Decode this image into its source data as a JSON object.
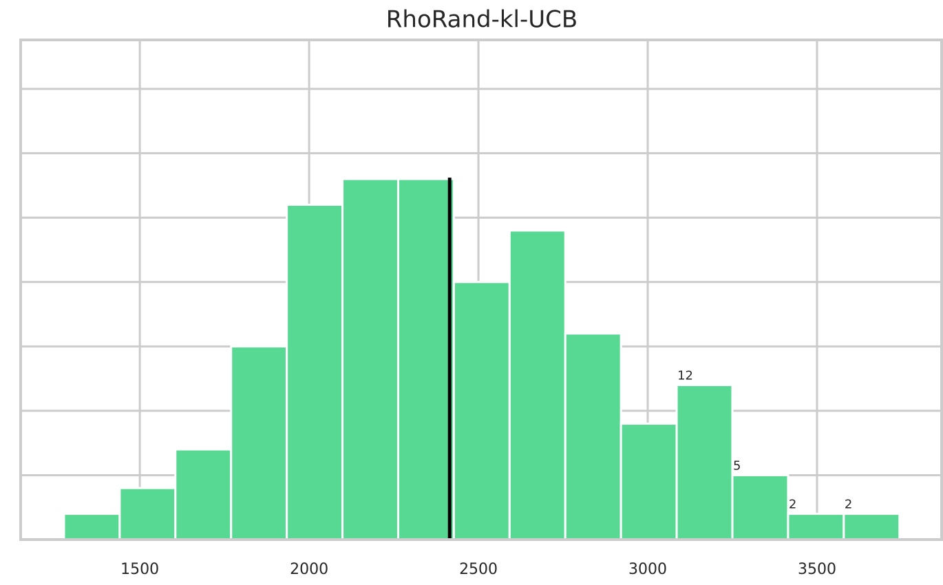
{
  "chart_data": {
    "type": "histogram",
    "title": "RhoRand-kl-UCB",
    "bins": [
      1276,
      1440.5,
      1605,
      1769.5,
      1934,
      2098.5,
      2263,
      2427.5,
      2592,
      2756.5,
      2921,
      3085.5,
      3250,
      3414.5,
      3579,
      3743.5
    ],
    "values": [
      2,
      4,
      7,
      15,
      26,
      28,
      28,
      20,
      24,
      16,
      9,
      12,
      5,
      2,
      2
    ],
    "value_labels": [
      null,
      null,
      null,
      null,
      null,
      null,
      null,
      null,
      null,
      null,
      null,
      "12",
      "5",
      "2",
      "2"
    ],
    "color": "#57d994",
    "xlim": [
      1148,
      3868
    ],
    "xticks": [
      1500,
      2000,
      2500,
      3000,
      3500
    ],
    "ylim": [
      0,
      38.8
    ],
    "yticks": [
      0,
      5,
      10,
      15,
      20,
      25,
      30,
      35
    ],
    "grid": true,
    "vline": {
      "x": 2415,
      "color": "#000000"
    }
  }
}
